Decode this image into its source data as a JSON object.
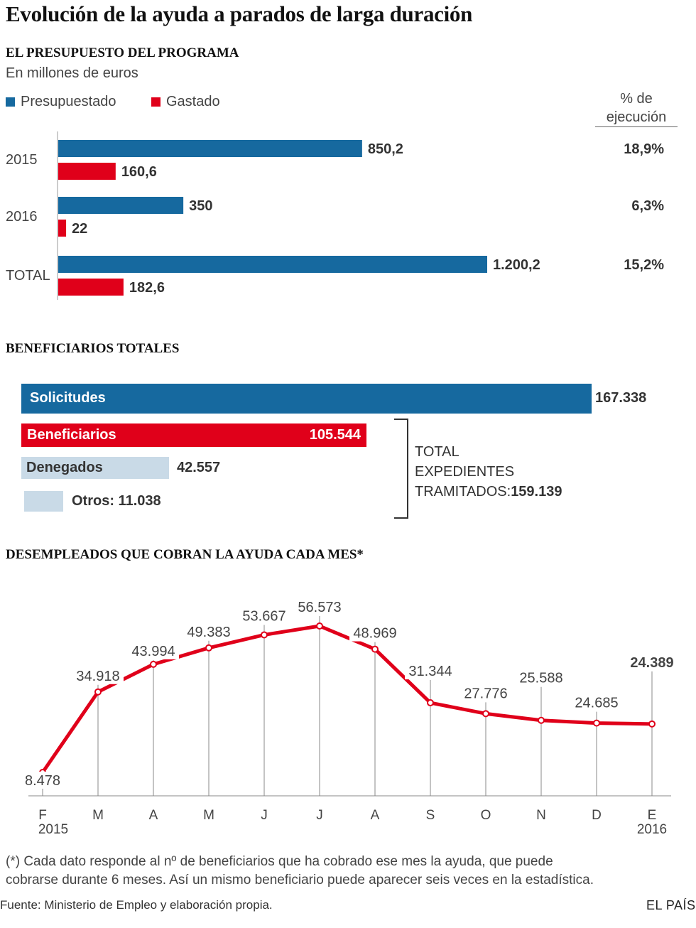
{
  "title": "Evolución de la ayuda a parados de larga duración",
  "colors": {
    "blue": "#16699f",
    "red": "#e0001a",
    "light": "#c9dae7",
    "line": "#e0001a"
  },
  "budget": {
    "heading": "EL PRESUPUESTO DEL PROGRAMA",
    "unit": "En millones de euros",
    "legend_budgeted": "Presupuestado",
    "legend_spent": "Gastado",
    "exec_header": [
      "% de",
      "ejecución"
    ]
  },
  "beneficiaries": {
    "heading": "BENEFICIARIOS TOTALES",
    "solicitudes_label": "Solicitudes",
    "solicitudes_value": "167.338",
    "beneficiarios_label": "Beneficiarios",
    "beneficiarios_value": "105.544",
    "denegados_label": "Denegados",
    "denegados_value": "42.557",
    "otros_label": "Otros: 11.038",
    "total_lines": [
      "TOTAL",
      "EXPEDIENTES",
      "TRAMITADOS:"
    ],
    "total_value": "159.139"
  },
  "monthly": {
    "heading": "DESEMPLEADOS QUE COBRAN LA AYUDA CADA MES*"
  },
  "chart_data": [
    {
      "type": "bar",
      "title": "EL PRESUPUESTO DEL PROGRAMA",
      "ylabel": "En millones de euros",
      "categories": [
        "2015",
        "2016",
        "TOTAL"
      ],
      "series": [
        {
          "name": "Presupuestado",
          "values": [
            850.2,
            350,
            1200.2
          ],
          "labels": [
            "850,2",
            "350",
            "1.200,2"
          ]
        },
        {
          "name": "Gastado",
          "values": [
            160.6,
            22,
            182.6
          ],
          "labels": [
            "160,6",
            "22",
            "182,6"
          ]
        }
      ],
      "execution_pct": [
        "18,9%",
        "6,3%",
        "15,2%"
      ],
      "xlim": [
        0,
        1200.2
      ]
    },
    {
      "type": "bar",
      "title": "BENEFICIARIOS TOTALES",
      "categories": [
        "Solicitudes",
        "Beneficiarios",
        "Denegados",
        "Otros"
      ],
      "values": [
        167338,
        105544,
        42557,
        11038
      ]
    },
    {
      "type": "line",
      "title": "DESEMPLEADOS QUE COBRAN LA AYUDA CADA MES*",
      "x": [
        "F",
        "M",
        "A",
        "M",
        "J",
        "J",
        "A",
        "S",
        "O",
        "N",
        "D",
        "E"
      ],
      "year_labels": {
        "first": "2015",
        "last": "2016"
      },
      "values": [
        8478,
        34918,
        43994,
        49383,
        53667,
        56573,
        48969,
        31344,
        27776,
        25588,
        24685,
        24389
      ],
      "labels": [
        "8.478",
        "34.918",
        "43.994",
        "49.383",
        "53.667",
        "56.573",
        "48.969",
        "31.344",
        "27.776",
        "25.588",
        "24.685",
        "24.389"
      ],
      "highlight_last": true
    }
  ],
  "footnote": [
    "(*) Cada dato responde al nº de beneficiarios que ha cobrado ese mes la ayuda, que puede",
    "cobrarse durante 6 meses. Así un mismo beneficiario puede aparecer seis veces en la estadística."
  ],
  "source": "Fuente: Ministerio de Empleo y elaboración propia.",
  "brand": "EL PAÍS"
}
